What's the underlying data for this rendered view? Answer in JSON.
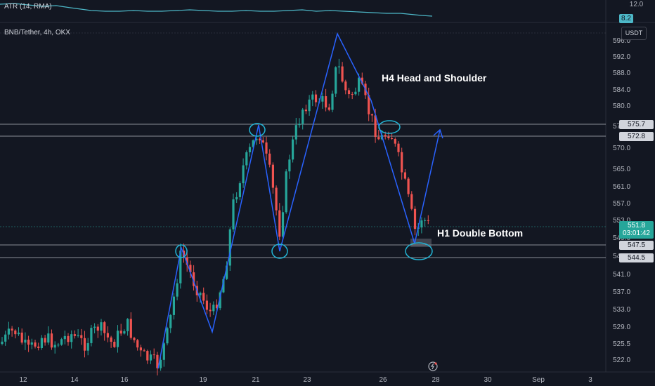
{
  "indicator": {
    "label": "ATR (14, RMA)",
    "scale_top": "12.0",
    "current": "8.2"
  },
  "symbol": {
    "title": "BNB/Tether, 4h, OKX",
    "currency": "USDT"
  },
  "price_axis": {
    "ticks": [
      "596.0",
      "592.0",
      "588.0",
      "584.0",
      "580.0",
      "575.0",
      "570.0",
      "565.0",
      "561.0",
      "557.0",
      "553.0",
      "549.0",
      "545.0",
      "541.0",
      "537.0",
      "533.0",
      "529.0",
      "525.5",
      "522.0"
    ],
    "hline_tags": [
      "575.7",
      "572.8",
      "547.5",
      "544.5"
    ],
    "last_price": "551.8",
    "countdown": "03:01:42"
  },
  "time_axis": {
    "labels": [
      "12",
      "14",
      "16",
      "19",
      "21",
      "23",
      "26",
      "28",
      "30",
      "Sep",
      "3"
    ]
  },
  "annotations": {
    "h4": "H4 Head and Shoulder",
    "h1": "H1 Double Bottom"
  },
  "colors": {
    "up": "#26a69a",
    "down": "#ef5350",
    "pattern_line": "#2962ff",
    "ellipse": "#22b5d6",
    "atr": "#4db8c8"
  }
}
